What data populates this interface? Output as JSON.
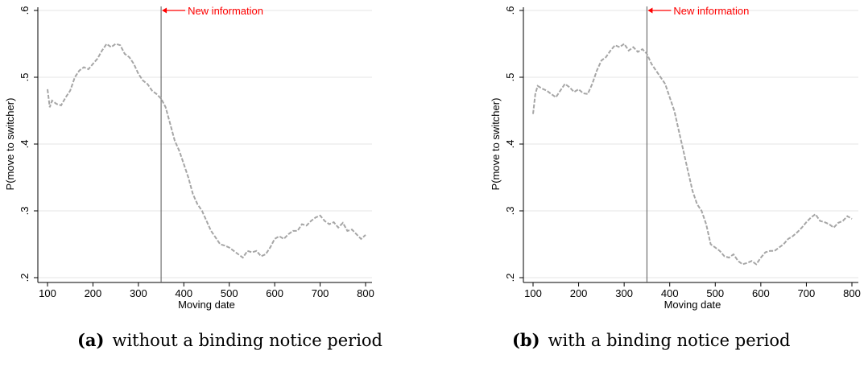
{
  "chart_data": [
    {
      "type": "line",
      "caption_label": "(a)",
      "caption_text": "without a binding notice period",
      "xlabel": "Moving date",
      "ylabel": "P(move to switcher)",
      "xlim": [
        100,
        800
      ],
      "ylim": [
        0.2,
        0.6
      ],
      "xticks": [
        "100",
        "200",
        "300",
        "400",
        "500",
        "600",
        "700",
        "800"
      ],
      "yticks": [
        ".2",
        ".3",
        ".4",
        ".5",
        ".6"
      ],
      "grid": true,
      "vline": {
        "x": 350,
        "label": "New information",
        "color": "#ff0000"
      },
      "series": [
        {
          "color": "#a6a6a6",
          "style": "dashed",
          "x": [
            100,
            105,
            110,
            120,
            130,
            140,
            150,
            160,
            170,
            180,
            190,
            200,
            210,
            220,
            230,
            240,
            250,
            260,
            270,
            280,
            290,
            300,
            310,
            320,
            330,
            340,
            350,
            360,
            370,
            380,
            390,
            400,
            410,
            420,
            430,
            440,
            450,
            460,
            470,
            480,
            490,
            500,
            510,
            520,
            530,
            540,
            550,
            560,
            570,
            580,
            590,
            600,
            610,
            620,
            630,
            640,
            650,
            660,
            670,
            680,
            690,
            700,
            710,
            720,
            730,
            740,
            750,
            760,
            770,
            780,
            790,
            800
          ],
          "y": [
            0.482,
            0.455,
            0.465,
            0.46,
            0.458,
            0.47,
            0.48,
            0.5,
            0.51,
            0.515,
            0.512,
            0.52,
            0.528,
            0.54,
            0.55,
            0.545,
            0.55,
            0.548,
            0.535,
            0.53,
            0.52,
            0.505,
            0.495,
            0.49,
            0.48,
            0.475,
            0.468,
            0.455,
            0.43,
            0.405,
            0.39,
            0.37,
            0.35,
            0.325,
            0.31,
            0.3,
            0.285,
            0.27,
            0.26,
            0.25,
            0.248,
            0.245,
            0.24,
            0.235,
            0.23,
            0.24,
            0.238,
            0.24,
            0.232,
            0.235,
            0.245,
            0.258,
            0.262,
            0.258,
            0.265,
            0.27,
            0.27,
            0.28,
            0.278,
            0.285,
            0.29,
            0.293,
            0.285,
            0.28,
            0.283,
            0.275,
            0.282,
            0.27,
            0.272,
            0.265,
            0.258,
            0.264
          ]
        }
      ]
    },
    {
      "type": "line",
      "caption_label": "(b)",
      "caption_text": "with a binding notice period",
      "xlabel": "Moving date",
      "ylabel": "P(move to switcher)",
      "xlim": [
        100,
        800
      ],
      "ylim": [
        0.2,
        0.6
      ],
      "xticks": [
        "100",
        "200",
        "300",
        "400",
        "500",
        "600",
        "700",
        "800"
      ],
      "yticks": [
        ".2",
        ".3",
        ".4",
        ".5",
        ".6"
      ],
      "grid": true,
      "vline": {
        "x": 350,
        "label": "New information",
        "color": "#ff0000"
      },
      "series": [
        {
          "color": "#a6a6a6",
          "style": "dashed",
          "x": [
            100,
            105,
            110,
            120,
            130,
            140,
            150,
            160,
            170,
            180,
            190,
            200,
            210,
            220,
            230,
            240,
            250,
            260,
            270,
            280,
            290,
            300,
            310,
            320,
            330,
            340,
            350,
            360,
            370,
            380,
            390,
            400,
            410,
            420,
            430,
            440,
            450,
            460,
            470,
            480,
            490,
            500,
            510,
            520,
            530,
            540,
            550,
            560,
            570,
            580,
            590,
            600,
            610,
            620,
            630,
            640,
            650,
            660,
            670,
            680,
            690,
            700,
            710,
            720,
            730,
            740,
            750,
            760,
            770,
            780,
            790,
            800
          ],
          "y": [
            0.445,
            0.475,
            0.487,
            0.483,
            0.48,
            0.475,
            0.47,
            0.48,
            0.49,
            0.485,
            0.478,
            0.482,
            0.476,
            0.475,
            0.49,
            0.51,
            0.525,
            0.53,
            0.54,
            0.548,
            0.545,
            0.55,
            0.54,
            0.545,
            0.538,
            0.542,
            0.535,
            0.52,
            0.51,
            0.5,
            0.49,
            0.47,
            0.45,
            0.42,
            0.39,
            0.36,
            0.33,
            0.31,
            0.3,
            0.28,
            0.25,
            0.245,
            0.24,
            0.232,
            0.23,
            0.235,
            0.225,
            0.22,
            0.222,
            0.225,
            0.22,
            0.23,
            0.238,
            0.24,
            0.24,
            0.245,
            0.25,
            0.258,
            0.262,
            0.268,
            0.275,
            0.283,
            0.29,
            0.295,
            0.285,
            0.283,
            0.28,
            0.275,
            0.282,
            0.285,
            0.292,
            0.288
          ]
        }
      ]
    }
  ]
}
